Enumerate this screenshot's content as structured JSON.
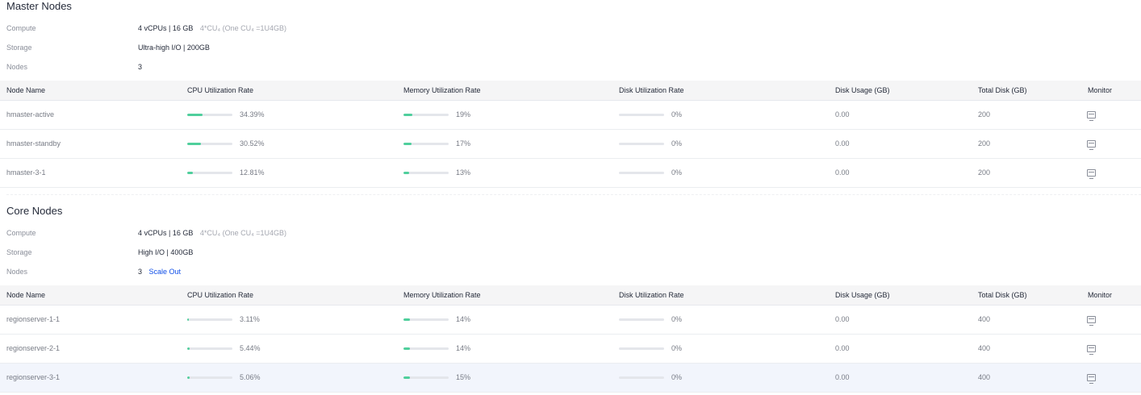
{
  "columns": {
    "node_name": "Node Name",
    "cpu": "CPU Utilization Rate",
    "memory": "Memory Utilization Rate",
    "disk_rate": "Disk Utilization Rate",
    "disk_usage": "Disk Usage (GB)",
    "total_disk": "Total Disk (GB)",
    "monitor": "Monitor"
  },
  "colors": {
    "bar_fill": "#4fcf9c",
    "bar_track": "#e4e6eb",
    "link": "#0f4ee8"
  },
  "master": {
    "title": "Master Nodes",
    "compute_label": "Compute",
    "compute_value": "4 vCPUs | 16 GB",
    "compute_note": "4*CU₄ (One CU₄ =1U4GB)",
    "storage_label": "Storage",
    "storage_value": "Ultra-high I/O | 200GB",
    "nodes_label": "Nodes",
    "nodes_value": "3",
    "rows": [
      {
        "name": "hmaster-active",
        "cpu_pct": 34.39,
        "cpu": "34.39%",
        "mem_pct": 19,
        "mem": "19%",
        "disk_pct": 0,
        "disk": "0%",
        "usage": "0.00",
        "total": "200"
      },
      {
        "name": "hmaster-standby",
        "cpu_pct": 30.52,
        "cpu": "30.52%",
        "mem_pct": 17,
        "mem": "17%",
        "disk_pct": 0,
        "disk": "0%",
        "usage": "0.00",
        "total": "200"
      },
      {
        "name": "hmaster-3-1",
        "cpu_pct": 12.81,
        "cpu": "12.81%",
        "mem_pct": 13,
        "mem": "13%",
        "disk_pct": 0,
        "disk": "0%",
        "usage": "0.00",
        "total": "200"
      }
    ]
  },
  "core": {
    "title": "Core Nodes",
    "compute_label": "Compute",
    "compute_value": "4 vCPUs | 16 GB",
    "compute_note": "4*CU₄ (One CU₄ =1U4GB)",
    "storage_label": "Storage",
    "storage_value": "High I/O | 400GB",
    "nodes_label": "Nodes",
    "nodes_value": "3",
    "scale_out": "Scale Out",
    "rows": [
      {
        "name": "regionserver-1-1",
        "cpu_pct": 3.11,
        "cpu": "3.11%",
        "mem_pct": 14,
        "mem": "14%",
        "disk_pct": 0,
        "disk": "0%",
        "usage": "0.00",
        "total": "400"
      },
      {
        "name": "regionserver-2-1",
        "cpu_pct": 5.44,
        "cpu": "5.44%",
        "mem_pct": 14,
        "mem": "14%",
        "disk_pct": 0,
        "disk": "0%",
        "usage": "0.00",
        "total": "400"
      },
      {
        "name": "regionserver-3-1",
        "cpu_pct": 5.06,
        "cpu": "5.06%",
        "mem_pct": 15,
        "mem": "15%",
        "disk_pct": 0,
        "disk": "0%",
        "usage": "0.00",
        "total": "400"
      }
    ]
  }
}
